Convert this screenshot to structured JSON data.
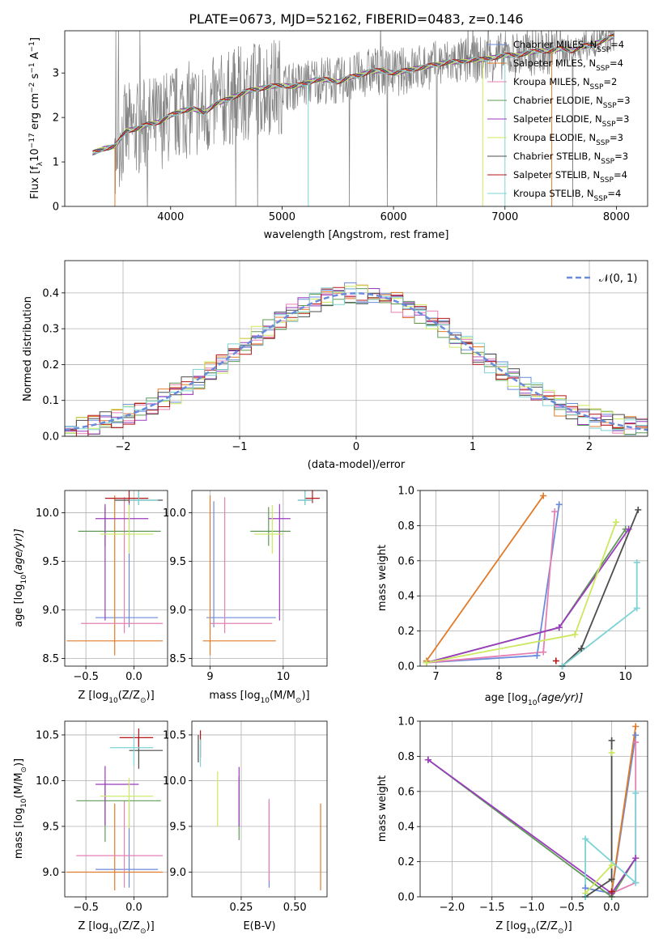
{
  "figure_title": "PLATE=0673, MJD=52162, FIBERID=0483, z=0.146",
  "colors": {
    "chabrier_miles": "#6a8bdc",
    "salpeter_miles": "#e07b2a",
    "kroupa_miles": "#e67fb3",
    "chabrier_elodie": "#5f9a55",
    "salpeter_elodie": "#9b3bbf",
    "kroupa_elodie": "#cbe85f",
    "chabrier_stelib": "#4d4d4d",
    "salpeter_stelib": "#b41717",
    "kroupa_stelib": "#7ed3d6",
    "data": "#808080"
  },
  "legend_labels": [
    "Chabrier MILES",
    "Salpeter MILES",
    "Kroupa MILES",
    "Chabrier ELODIE",
    "Salpeter ELODIE",
    "Kroupa ELODIE",
    "Chabrier STELIB",
    "Salpeter STELIB",
    "Kroupa STELIB"
  ],
  "legend_nssp": [
    "4",
    "4",
    "2",
    "3",
    "3",
    "3",
    "3",
    "4",
    "4"
  ],
  "nssp_prefix": "N",
  "nssp_sub": "SSP",
  "nssp_eq": "=",
  "chart_data": [
    {
      "id": "spectrum",
      "type": "line",
      "xlabel": "wavelength [Angstrom, rest frame]",
      "ylabel": "Flux [f",
      "ylabel_parts": [
        "Flux [f",
        "λ",
        "10",
        "−17",
        " erg cm",
        "−2",
        " s",
        "−1",
        " A",
        "−1",
        "]"
      ],
      "xlim": [
        3050,
        8280
      ],
      "ylim": [
        0,
        3.95
      ],
      "xticks": [
        4000,
        5000,
        6000,
        7000,
        8000
      ],
      "yticks": [
        0,
        1,
        2,
        3
      ],
      "grid": false,
      "legend_position": "top-right",
      "series_continuum_x": [
        3300,
        3400,
        3500,
        3600,
        3700,
        3800,
        3900,
        4000,
        4100,
        4200,
        4300,
        4400,
        4500,
        4600,
        4700,
        4800,
        4900,
        5000,
        5100,
        5200,
        5300,
        5400,
        5500,
        5600,
        5700,
        5800,
        5900,
        6000,
        6100,
        6200,
        6300,
        6400,
        6500,
        6600,
        6700,
        6800,
        6900,
        7000,
        7100,
        7200,
        7300,
        7400,
        7500,
        7600,
        7700,
        7800,
        7900,
        8000
      ],
      "series_continuum_y": [
        1.2,
        1.3,
        1.35,
        1.7,
        1.75,
        1.85,
        1.9,
        2.05,
        2.15,
        2.2,
        2.1,
        2.3,
        2.4,
        2.5,
        2.6,
        2.65,
        2.7,
        2.72,
        2.7,
        2.75,
        2.85,
        2.85,
        2.8,
        2.9,
        2.95,
        3.05,
        3.05,
        3.0,
        3.05,
        3.1,
        3.15,
        3.2,
        3.25,
        3.25,
        3.3,
        3.3,
        3.35,
        3.4,
        3.4,
        3.45,
        3.5,
        3.5,
        3.55,
        3.5,
        3.6,
        3.65,
        3.75,
        3.85
      ]
    },
    {
      "id": "residuals",
      "type": "histogram",
      "xlabel": "(data-model)/error",
      "ylabel": "Normed distribution",
      "xlim": [
        -2.5,
        2.5
      ],
      "ylim": [
        0,
        0.49
      ],
      "xticks": [
        -2,
        -1,
        0,
        1,
        2
      ],
      "yticks": [
        0.0,
        0.1,
        0.2,
        0.3,
        0.4
      ],
      "grid": true,
      "legend_position": "top-right",
      "legend_label": "𝒩(0, 1)",
      "gaussian_reference": {
        "mean": 0,
        "sigma": 1
      }
    },
    {
      "id": "age_vs_Z",
      "type": "errorbar",
      "xlabel": "Z [log",
      "xlabel_parts": [
        "Z [log",
        "10",
        "(Z/Z",
        "⊙",
        ")]"
      ],
      "ylabel_parts": [
        "age  [log",
        "10",
        "(age/yr)]"
      ],
      "xlim": [
        -0.72,
        0.35
      ],
      "ylim": [
        8.42,
        10.23
      ],
      "xticks": [
        -0.5,
        0.0
      ],
      "yticks": [
        8.5,
        9.0,
        9.5,
        10.0
      ],
      "grid": true,
      "points": [
        {
          "model": "chabrier_miles",
          "x": -0.05,
          "xerr": [
            0.35,
            0.3
          ],
          "y": 8.92,
          "yerr": [
            0.1,
            1.2
          ]
        },
        {
          "model": "salpeter_miles",
          "x": -0.2,
          "xerr": [
            0.5,
            0.5
          ],
          "y": 8.68,
          "yerr": [
            0.15,
            1.5
          ]
        },
        {
          "model": "kroupa_miles",
          "x": -0.1,
          "xerr": [
            0.45,
            0.4
          ],
          "y": 8.86,
          "yerr": [
            0.1,
            1.3
          ]
        },
        {
          "model": "chabrier_elodie",
          "x": -0.3,
          "xerr": [
            0.28,
            0.58
          ],
          "y": 9.81,
          "yerr": [
            0.15,
            0.25
          ]
        },
        {
          "model": "salpeter_elodie",
          "x": -0.3,
          "xerr": [
            0.1,
            0.45
          ],
          "y": 9.94,
          "yerr": [
            1.05,
            0.15
          ]
        },
        {
          "model": "kroupa_elodie",
          "x": -0.05,
          "xerr": [
            0.3,
            0.25
          ],
          "y": 9.78,
          "yerr": [
            0.2,
            0.3
          ]
        },
        {
          "model": "chabrier_stelib",
          "x": 0.05,
          "xerr": [
            0.25,
            0.25
          ],
          "y": 10.13,
          "yerr": [
            0.05,
            0.1
          ]
        },
        {
          "model": "salpeter_stelib",
          "x": -0.05,
          "xerr": [
            0.25,
            0.2
          ],
          "y": 10.15,
          "yerr": [
            0.05,
            0.1
          ]
        },
        {
          "model": "kroupa_stelib",
          "x": 0.05,
          "xerr": [
            0.1,
            0.2
          ],
          "y": 10.13,
          "yerr": [
            0.05,
            0.1
          ]
        }
      ]
    },
    {
      "id": "age_vs_mass",
      "type": "errorbar",
      "xlabel_parts": [
        "mass [log",
        "10",
        "(M/M",
        "⊙",
        ")]"
      ],
      "xlim": [
        8.75,
        10.6
      ],
      "ylim": [
        8.42,
        10.23
      ],
      "xticks": [
        9,
        10
      ],
      "yticks": [
        8.5,
        9.0,
        9.5,
        10.0
      ],
      "grid": true,
      "points": [
        {
          "model": "chabrier_miles",
          "x": 9.05,
          "xerr": [
            0.1,
            0.85
          ],
          "y": 8.92,
          "yerr": [
            0.1,
            1.2
          ]
        },
        {
          "model": "salpeter_miles",
          "x": 9.0,
          "xerr": [
            0.1,
            0.9
          ],
          "y": 8.68,
          "yerr": [
            0.15,
            1.5
          ]
        },
        {
          "model": "kroupa_miles",
          "x": 9.2,
          "xerr": [
            0.2,
            0.65
          ],
          "y": 8.86,
          "yerr": [
            0.1,
            1.3
          ]
        },
        {
          "model": "chabrier_elodie",
          "x": 9.8,
          "xerr": [
            0.25,
            0.3
          ],
          "y": 9.81,
          "yerr": [
            0.15,
            0.25
          ]
        },
        {
          "model": "salpeter_elodie",
          "x": 9.95,
          "xerr": [
            0.15,
            0.15
          ],
          "y": 9.94,
          "yerr": [
            1.05,
            0.15
          ]
        },
        {
          "model": "kroupa_elodie",
          "x": 9.85,
          "xerr": [
            0.25,
            0.15
          ],
          "y": 9.78,
          "yerr": [
            0.2,
            0.3
          ]
        },
        {
          "model": "chabrier_stelib",
          "x": 10.3,
          "xerr": [
            0.1,
            0.1
          ],
          "y": 10.13,
          "yerr": [
            0.05,
            0.1
          ]
        },
        {
          "model": "salpeter_stelib",
          "x": 10.4,
          "xerr": [
            0.1,
            0.1
          ],
          "y": 10.15,
          "yerr": [
            0.05,
            0.1
          ]
        },
        {
          "model": "kroupa_stelib",
          "x": 10.3,
          "xerr": [
            0.1,
            0.1
          ],
          "y": 10.13,
          "yerr": [
            0.05,
            0.1
          ]
        }
      ]
    },
    {
      "id": "mass_weight_vs_age",
      "type": "line",
      "xlabel_parts": [
        "age  [log",
        "10",
        "(age/yr)]"
      ],
      "ylabel": "mass weight",
      "xlim": [
        6.75,
        10.35
      ],
      "ylim": [
        0,
        1.0
      ],
      "xticks": [
        7,
        8,
        9,
        10
      ],
      "yticks": [
        0.0,
        0.2,
        0.4,
        0.6,
        0.8,
        1.0
      ],
      "grid": true,
      "series": [
        {
          "model": "chabrier_miles",
          "x": [
            6.85,
            8.6,
            8.95
          ],
          "y": [
            0.02,
            0.06,
            0.92
          ]
        },
        {
          "model": "salpeter_miles",
          "x": [
            6.85,
            8.7
          ],
          "y": [
            0.03,
            0.97
          ]
        },
        {
          "model": "kroupa_miles",
          "x": [
            6.85,
            8.7,
            8.88
          ],
          "y": [
            0.02,
            0.08,
            0.88
          ]
        },
        {
          "model": "chabrier_elodie",
          "x": [
            6.85,
            8.95,
            10.0
          ],
          "y": [
            0.02,
            0.22,
            0.78
          ]
        },
        {
          "model": "salpeter_elodie",
          "x": [
            6.85,
            8.95,
            10.05
          ],
          "y": [
            0.02,
            0.22,
            0.78
          ]
        },
        {
          "model": "kroupa_elodie",
          "x": [
            6.85,
            9.2,
            9.85
          ],
          "y": [
            0.02,
            0.18,
            0.82
          ]
        },
        {
          "model": "chabrier_stelib",
          "x": [
            9.0,
            9.3,
            10.2
          ],
          "y": [
            0.0,
            0.1,
            0.89
          ]
        },
        {
          "model": "salpeter_stelib",
          "x": [
            8.9
          ],
          "y": [
            0.03
          ]
        },
        {
          "model": "kroupa_stelib",
          "x": [
            9.0,
            10.18,
            10.18
          ],
          "y": [
            0.0,
            0.33,
            0.59
          ]
        }
      ]
    },
    {
      "id": "mass_vs_Z",
      "type": "errorbar",
      "xlabel_parts": [
        "Z [log",
        "10",
        "(Z/Z",
        "⊙",
        ")]"
      ],
      "ylabel_parts": [
        "mass [log",
        "10",
        "(M/M",
        "⊙",
        ")]"
      ],
      "xlim": [
        -0.72,
        0.35
      ],
      "ylim": [
        8.73,
        10.65
      ],
      "xticks": [
        -0.5,
        0.0
      ],
      "yticks": [
        9.0,
        9.5,
        10.0,
        10.5
      ],
      "grid": true,
      "points": [
        {
          "model": "chabrier_miles",
          "x": -0.05,
          "xerr": [
            0.35,
            0.3
          ],
          "y": 9.03,
          "yerr": [
            0.2,
            0.75
          ]
        },
        {
          "model": "salpeter_miles",
          "x": -0.2,
          "xerr": [
            0.5,
            0.5
          ],
          "y": 9.0,
          "yerr": [
            0.2,
            0.75
          ]
        },
        {
          "model": "kroupa_miles",
          "x": -0.1,
          "xerr": [
            0.5,
            0.4
          ],
          "y": 9.18,
          "yerr": [
            0.35,
            0.6
          ]
        },
        {
          "model": "chabrier_elodie",
          "x": -0.3,
          "xerr": [
            0.3,
            0.58
          ],
          "y": 9.78,
          "yerr": [
            0.45,
            0.2
          ]
        },
        {
          "model": "salpeter_elodie",
          "x": -0.3,
          "xerr": [
            0.1,
            0.35
          ],
          "y": 9.96,
          "yerr": [
            0.45,
            0.2
          ]
        },
        {
          "model": "kroupa_elodie",
          "x": -0.05,
          "xerr": [
            0.3,
            0.25
          ],
          "y": 9.83,
          "yerr": [
            0.35,
            0.2
          ]
        },
        {
          "model": "chabrier_stelib",
          "x": 0.05,
          "xerr": [
            0.1,
            0.25
          ],
          "y": 10.33,
          "yerr": [
            0.2,
            0.15
          ]
        },
        {
          "model": "salpeter_stelib",
          "x": 0.05,
          "xerr": [
            0.2,
            0.15
          ],
          "y": 10.47,
          "yerr": [
            0.1,
            0.1
          ]
        },
        {
          "model": "kroupa_stelib",
          "x": 0.0,
          "xerr": [
            0.25,
            0.2
          ],
          "y": 10.36,
          "yerr": [
            0.2,
            0.15
          ]
        }
      ]
    },
    {
      "id": "mass_vs_ebv",
      "type": "errorbar",
      "xlabel": "E(B-V)",
      "xlim": [
        0.02,
        0.65
      ],
      "ylim": [
        8.73,
        10.65
      ],
      "xticks": [
        0.25,
        0.5
      ],
      "yticks": [
        9.0,
        9.5,
        10.0,
        10.5
      ],
      "grid": true,
      "points": [
        {
          "model": "chabrier_miles",
          "x": 0.38,
          "y": 9.03,
          "yerr": [
            0.2,
            0.75
          ]
        },
        {
          "model": "salpeter_miles",
          "x": 0.62,
          "y": 9.0,
          "yerr": [
            0.2,
            0.75
          ]
        },
        {
          "model": "kroupa_miles",
          "x": 0.38,
          "y": 9.3,
          "yerr": [
            0.4,
            0.5
          ]
        },
        {
          "model": "chabrier_elodie",
          "x": 0.24,
          "y": 9.7,
          "yerr": [
            0.35,
            0.35
          ]
        },
        {
          "model": "salpeter_elodie",
          "x": 0.24,
          "y": 9.8,
          "yerr": [
            0.3,
            0.35
          ]
        },
        {
          "model": "kroupa_elodie",
          "x": 0.14,
          "y": 9.8,
          "yerr": [
            0.3,
            0.3
          ]
        },
        {
          "model": "chabrier_stelib",
          "x": 0.05,
          "y": 10.35,
          "yerr": [
            0.15,
            0.15
          ]
        },
        {
          "model": "salpeter_stelib",
          "x": 0.06,
          "y": 10.4,
          "yerr": [
            0.15,
            0.15
          ]
        },
        {
          "model": "kroupa_stelib",
          "x": 0.06,
          "y": 10.3,
          "yerr": [
            0.15,
            0.15
          ]
        }
      ]
    },
    {
      "id": "mass_weight_vs_Z",
      "type": "line",
      "xlabel_parts": [
        "Z [log",
        "10",
        "(Z/Z",
        "⊙",
        ")]"
      ],
      "ylabel": "mass weight",
      "xlim": [
        -2.4,
        0.45
      ],
      "ylim": [
        0,
        1.0
      ],
      "xticks": [
        -2.0,
        -1.5,
        -1.0,
        -0.5,
        0.0
      ],
      "yticks": [
        0.0,
        0.2,
        0.4,
        0.6,
        0.8,
        1.0
      ],
      "grid": true,
      "series": [
        {
          "model": "chabrier_miles",
          "x": [
            -0.33,
            0.0,
            0.3
          ],
          "y": [
            0.05,
            0.02,
            0.92
          ]
        },
        {
          "model": "salpeter_miles",
          "x": [
            0.0,
            0.3
          ],
          "y": [
            0.03,
            0.97
          ]
        },
        {
          "model": "kroupa_miles",
          "x": [
            0.0,
            0.3,
            0.3
          ],
          "y": [
            0.02,
            0.08,
            0.88
          ]
        },
        {
          "model": "chabrier_elodie",
          "x": [
            -2.3,
            0.0,
            0.3
          ],
          "y": [
            0.78,
            0.0,
            0.22
          ]
        },
        {
          "model": "salpeter_elodie",
          "x": [
            -2.3,
            0.0,
            0.3
          ],
          "y": [
            0.78,
            0.02,
            0.22
          ]
        },
        {
          "model": "kroupa_elodie",
          "x": [
            -0.33,
            0.0,
            0.0
          ],
          "y": [
            0.02,
            0.18,
            0.82
          ]
        },
        {
          "model": "chabrier_stelib",
          "x": [
            -0.33,
            0.0,
            0.0
          ],
          "y": [
            0.0,
            0.1,
            0.89
          ]
        },
        {
          "model": "salpeter_stelib",
          "x": [
            0.0
          ],
          "y": [
            0.03
          ]
        },
        {
          "model": "kroupa_stelib",
          "x": [
            -0.33,
            -0.33,
            0.3,
            0.3
          ],
          "y": [
            0.0,
            0.33,
            0.08,
            0.59
          ]
        }
      ]
    }
  ]
}
